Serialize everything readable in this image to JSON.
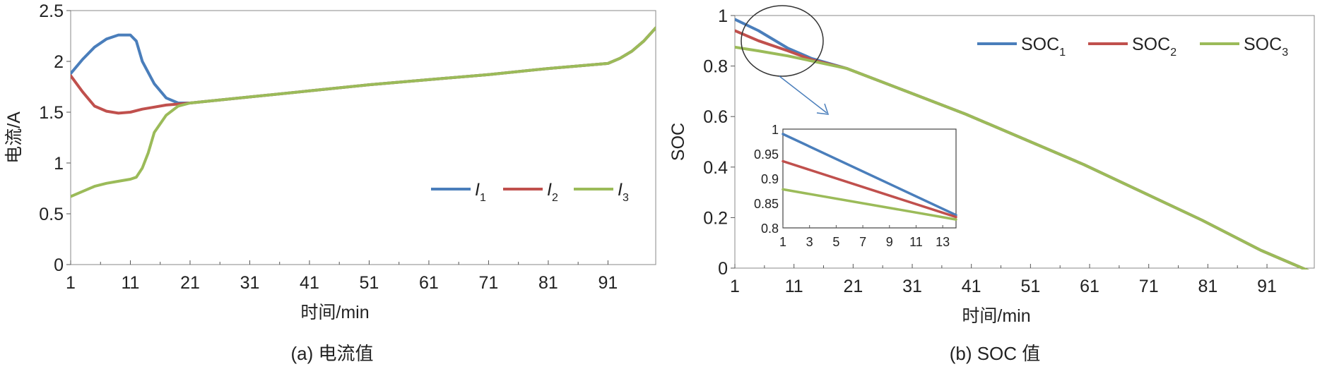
{
  "colors": {
    "blue": "#4a7ebb",
    "red": "#c0504d",
    "green": "#9bbb59",
    "axis": "#555555"
  },
  "chart_data": [
    {
      "type": "line",
      "caption": "(a) 电流值",
      "xlabel": "时间/min",
      "ylabel": "电流/A",
      "xlim": [
        1,
        99
      ],
      "ylim": [
        0,
        2.5
      ],
      "xticks": [
        "1",
        "11",
        "21",
        "31",
        "41",
        "51",
        "61",
        "71",
        "81",
        "91"
      ],
      "yticks": [
        "0",
        "0.5",
        "1",
        "1.5",
        "2",
        "2.5"
      ],
      "legend_position": "right",
      "series": [
        {
          "name": "I",
          "subscript": "1",
          "color": "#4a7ebb",
          "x": [
            1,
            3,
            5,
            7,
            9,
            11,
            12,
            13,
            15,
            17,
            19,
            21,
            31,
            41,
            51,
            61,
            71,
            81,
            91,
            93,
            95,
            97,
            99
          ],
          "y": [
            1.88,
            2.02,
            2.14,
            2.22,
            2.26,
            2.26,
            2.2,
            2.0,
            1.78,
            1.64,
            1.59,
            1.59,
            1.65,
            1.71,
            1.77,
            1.82,
            1.87,
            1.93,
            1.98,
            2.03,
            2.1,
            2.2,
            2.33
          ]
        },
        {
          "name": "I",
          "subscript": "2",
          "color": "#c0504d",
          "x": [
            1,
            3,
            5,
            7,
            9,
            11,
            13,
            15,
            17,
            19,
            21,
            31,
            41,
            51,
            61,
            71,
            81,
            91,
            93,
            95,
            97,
            99
          ],
          "y": [
            1.86,
            1.7,
            1.56,
            1.51,
            1.49,
            1.5,
            1.53,
            1.55,
            1.57,
            1.58,
            1.59,
            1.65,
            1.71,
            1.77,
            1.82,
            1.87,
            1.93,
            1.98,
            2.03,
            2.1,
            2.2,
            2.33
          ]
        },
        {
          "name": "I",
          "subscript": "3",
          "color": "#9bbb59",
          "x": [
            1,
            3,
            5,
            7,
            9,
            11,
            12,
            13,
            14,
            15,
            17,
            19,
            21,
            31,
            41,
            51,
            61,
            71,
            81,
            91,
            93,
            95,
            97,
            99
          ],
          "y": [
            0.67,
            0.72,
            0.77,
            0.8,
            0.82,
            0.84,
            0.86,
            0.95,
            1.1,
            1.3,
            1.47,
            1.56,
            1.59,
            1.65,
            1.71,
            1.77,
            1.82,
            1.87,
            1.93,
            1.98,
            2.03,
            2.1,
            2.2,
            2.33
          ]
        }
      ]
    },
    {
      "type": "line",
      "caption": "(b) SOC 值",
      "xlabel": "时间/min",
      "ylabel": "SOC",
      "xlim": [
        1,
        99
      ],
      "ylim": [
        0,
        1
      ],
      "xticks": [
        "1",
        "11",
        "21",
        "31",
        "41",
        "51",
        "61",
        "71",
        "81",
        "91"
      ],
      "yticks": [
        "0",
        "0.2",
        "0.4",
        "0.6",
        "0.8",
        "1"
      ],
      "legend_position": "top-right",
      "series": [
        {
          "name": "SOC",
          "subscript": "1",
          "color": "#4a7ebb",
          "x": [
            1,
            5,
            10,
            14,
            20,
            30,
            40,
            50,
            60,
            70,
            80,
            90,
            98
          ],
          "y": [
            0.985,
            0.94,
            0.87,
            0.83,
            0.79,
            0.7,
            0.61,
            0.51,
            0.41,
            0.3,
            0.19,
            0.07,
            -0.01
          ]
        },
        {
          "name": "SOC",
          "subscript": "2",
          "color": "#c0504d",
          "x": [
            1,
            5,
            10,
            14,
            20,
            30,
            40,
            50,
            60,
            70,
            80,
            90,
            98
          ],
          "y": [
            0.94,
            0.9,
            0.86,
            0.825,
            0.79,
            0.7,
            0.61,
            0.51,
            0.41,
            0.3,
            0.19,
            0.07,
            -0.01
          ]
        },
        {
          "name": "SOC",
          "subscript": "3",
          "color": "#9bbb59",
          "x": [
            1,
            5,
            10,
            14,
            20,
            30,
            40,
            50,
            60,
            70,
            80,
            90,
            98
          ],
          "y": [
            0.875,
            0.86,
            0.84,
            0.82,
            0.79,
            0.7,
            0.61,
            0.51,
            0.41,
            0.3,
            0.19,
            0.07,
            -0.01
          ]
        }
      ],
      "inset": {
        "xlim": [
          1,
          14
        ],
        "ylim": [
          0.8,
          1
        ],
        "xticks": [
          "1",
          "3",
          "5",
          "7",
          "9",
          "11",
          "13"
        ],
        "yticks": [
          "0.8",
          "0.85",
          "0.9",
          "0.95",
          "1"
        ],
        "series": [
          {
            "color": "#4a7ebb",
            "x": [
              1,
              14
            ],
            "y": [
              0.99,
              0.826
            ]
          },
          {
            "color": "#c0504d",
            "x": [
              1,
              14
            ],
            "y": [
              0.935,
              0.822
            ]
          },
          {
            "color": "#9bbb59",
            "x": [
              1,
              14
            ],
            "y": [
              0.878,
              0.817
            ]
          }
        ]
      }
    }
  ]
}
